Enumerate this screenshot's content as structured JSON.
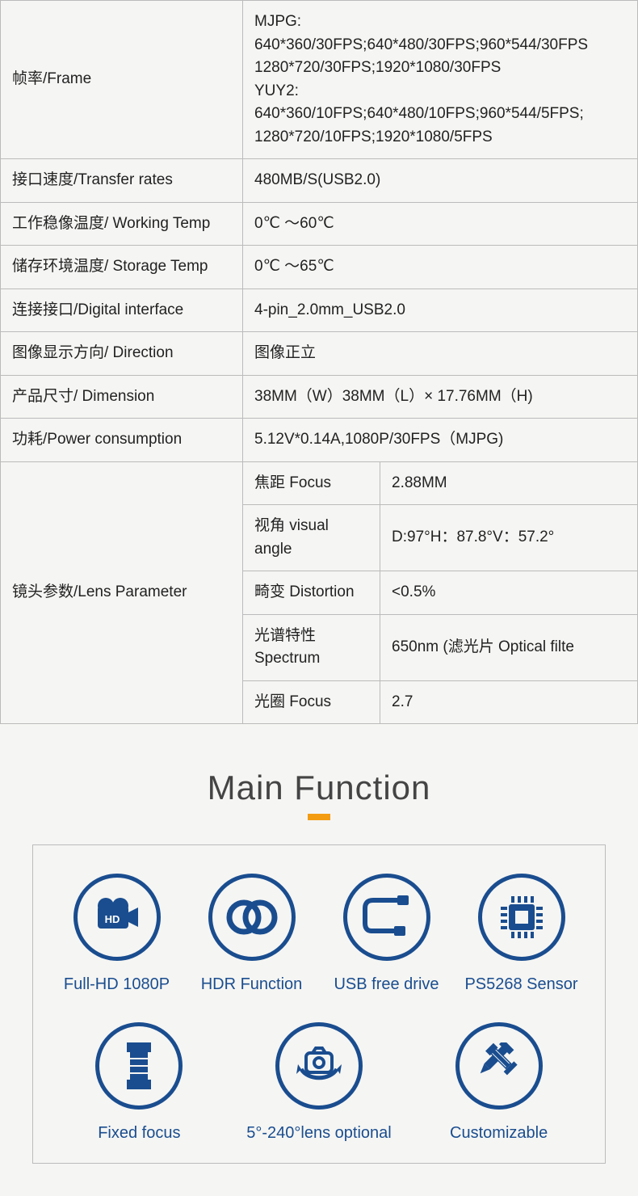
{
  "table": {
    "rows": [
      {
        "label": "帧率/Frame",
        "value": "MJPG:\n640*360/30FPS;640*480/30FPS;960*544/30FPS\n1280*720/30FPS;1920*1080/30FPS\nYUY2:\n640*360/10FPS;640*480/10FPS;960*544/5FPS;\n1280*720/10FPS;1920*1080/5FPS",
        "multiline": true
      },
      {
        "label": "接口速度/Transfer rates",
        "value": "480MB/S(USB2.0)"
      },
      {
        "label": "工作稳像温度/ Working Temp",
        "value": "0℃  ～60℃"
      },
      {
        "label": "储存环境温度/ Storage Temp",
        "value": "0℃  ～65℃"
      },
      {
        "label": "连接接口/Digital interface",
        "value": "4-pin_2.0mm_USB2.0"
      },
      {
        "label": "图像显示方向/ Direction",
        "value": "图像正立"
      },
      {
        "label": "产品尺寸/ Dimension",
        "value": "38MM（W）38MM（L）× 17.76MM（H)"
      },
      {
        "label": "功耗/Power consumption",
        "value": "5.12V*0.14A,1080P/30FPS（MJPG)"
      }
    ],
    "lens_label": "镜头参数/Lens Parameter",
    "lens_rows": [
      {
        "k": "焦距 Focus",
        "v": "2.88MM"
      },
      {
        "k": "视角 visual angle",
        "v": "D:97°H：87.8°V：57.2°"
      },
      {
        "k": "畸变 Distortion",
        "v": "<0.5%"
      },
      {
        "k": "光谱特性 Spectrum",
        "v": "650nm (滤光片 Optical filte"
      },
      {
        "k": "光圈 Focus",
        "v": "2.7"
      }
    ]
  },
  "section_title": "Main Function",
  "functions_row1": [
    {
      "icon": "hd-camera-icon",
      "label": "Full-HD 1080P"
    },
    {
      "icon": "hdr-icon",
      "label": "HDR Function"
    },
    {
      "icon": "usb-cable-icon",
      "label": "USB free drive"
    },
    {
      "icon": "chip-icon",
      "label": "PS5268 Sensor"
    }
  ],
  "functions_row2": [
    {
      "icon": "lens-icon",
      "label": "Fixed focus"
    },
    {
      "icon": "rotate-camera-icon",
      "label": "5°-240°lens optional"
    },
    {
      "icon": "tools-icon",
      "label": "Customizable"
    }
  ],
  "colors": {
    "brand": "#1a4d8f",
    "accent": "#f39c12",
    "border": "#bbbbbb",
    "bg": "#f5f5f3",
    "text": "#222222"
  }
}
